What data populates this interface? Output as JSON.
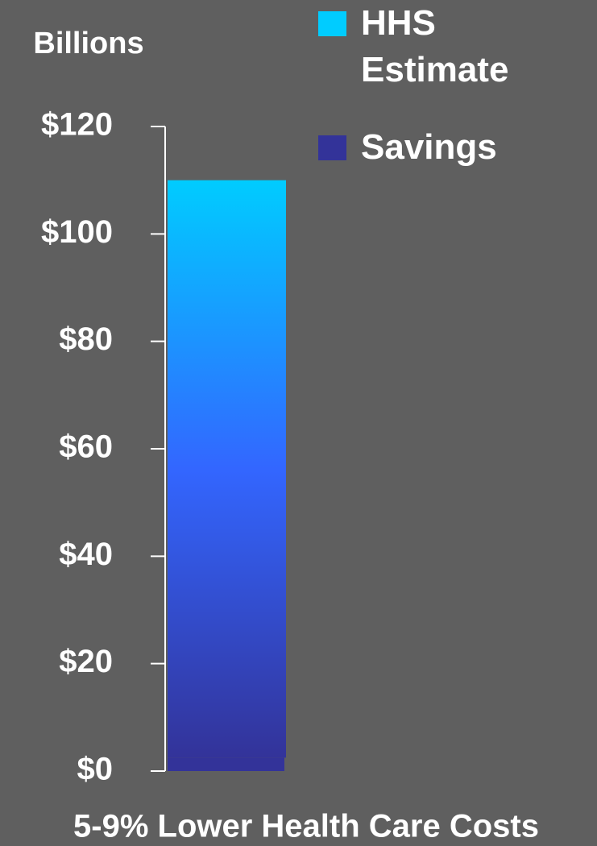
{
  "chart_data": {
    "type": "stacked_bar",
    "y_label": "Billions",
    "categories": [
      "5-9% Lower Health Care Costs"
    ],
    "series": [
      {
        "name": "Savings",
        "color": "#333399",
        "values": [
          2.5
        ]
      },
      {
        "name": "HHS Estimate",
        "color": "#00ccff",
        "values": [
          107.5
        ]
      }
    ],
    "legend_order": [
      1,
      0
    ],
    "ylim": [
      0,
      120
    ],
    "yticks": [
      {
        "value": 0,
        "label": "$0"
      },
      {
        "value": 20,
        "label": "$20"
      },
      {
        "value": 40,
        "label": "$40"
      },
      {
        "value": 60,
        "label": "$60"
      },
      {
        "value": 80,
        "label": "$80"
      },
      {
        "value": 100,
        "label": "$100"
      },
      {
        "value": 120,
        "label": "$120"
      }
    ]
  }
}
